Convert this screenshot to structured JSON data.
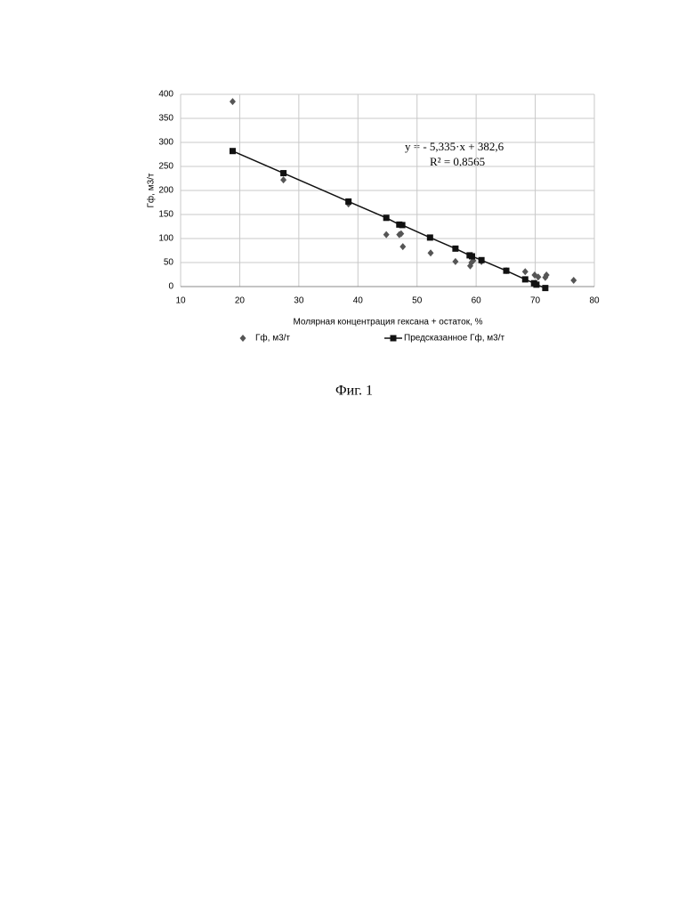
{
  "chart_data": {
    "type": "scatter",
    "xlabel": "Молярная концентрация гексана + остаток, %",
    "ylabel": "Гф, м3/т",
    "xlim": [
      10,
      80
    ],
    "xticks": [
      10,
      20,
      30,
      40,
      50,
      60,
      70,
      80
    ],
    "ylim": [
      0,
      400
    ],
    "yticks": [
      0,
      50,
      100,
      150,
      200,
      250,
      300,
      350,
      400
    ],
    "grid": true,
    "annotations": [
      "y = - 5,335·x + 382,6",
      "R² = 0,8565"
    ],
    "caption": "Фиг. 1",
    "series": [
      {
        "name": "Гф, м3/т",
        "color": "#555555",
        "marker": "diamond",
        "line": false,
        "x": [
          18.8,
          27.4,
          38.4,
          44.8,
          47.0,
          47.3,
          47.6,
          52.3,
          56.5,
          59.0,
          59.2,
          59.5,
          60.9,
          65.1,
          68.3,
          69.9,
          70.5,
          71.7,
          71.9,
          76.5
        ],
        "y": [
          385,
          222,
          172,
          108,
          108,
          110,
          83,
          70,
          52,
          43,
          50,
          54,
          52,
          33,
          31,
          24,
          20,
          19,
          24,
          13
        ]
      },
      {
        "name": "Предсказанное Гф, м3/т",
        "color": "#111111",
        "marker": "square",
        "line": true,
        "x": [
          18.8,
          27.4,
          38.4,
          44.8,
          47.0,
          47.5,
          52.2,
          56.5,
          58.9,
          59.3,
          60.9,
          65.1,
          68.3,
          69.8,
          70.2,
          71.7
        ],
        "y": [
          282,
          236,
          177,
          143,
          129,
          128,
          102,
          79,
          65,
          63,
          55,
          33,
          15,
          7,
          4,
          -3
        ]
      }
    ]
  }
}
